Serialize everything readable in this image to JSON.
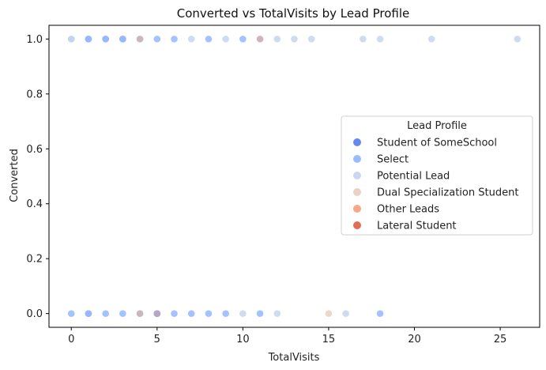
{
  "chart_data": {
    "type": "scatter",
    "title": "Converted vs TotalVisits by Lead Profile",
    "xlabel": "TotalVisits",
    "ylabel": "Converted",
    "xlim": [
      -1.3,
      27.3
    ],
    "ylim": [
      -0.05,
      1.05
    ],
    "xticks": [
      0,
      5,
      10,
      15,
      20,
      25
    ],
    "yticks": [
      0.0,
      0.2,
      0.4,
      0.6,
      0.8,
      1.0
    ],
    "grid": false,
    "legend": {
      "title": "Lead Profile",
      "placement": "center-right"
    },
    "series": [
      {
        "name": "Student of SomeSchool",
        "color": "#6788ee",
        "points": [
          [
            1,
            0
          ],
          [
            1,
            1
          ],
          [
            2,
            1
          ],
          [
            3,
            1
          ],
          [
            5,
            0
          ]
        ]
      },
      {
        "name": "Select",
        "color": "#9abbff",
        "points": [
          [
            0,
            1
          ],
          [
            1,
            1
          ],
          [
            2,
            1
          ],
          [
            3,
            1
          ],
          [
            5,
            1
          ],
          [
            6,
            1
          ],
          [
            8,
            1
          ],
          [
            10,
            1
          ],
          [
            0,
            0
          ],
          [
            1,
            0
          ],
          [
            2,
            0
          ],
          [
            3,
            0
          ],
          [
            5,
            0
          ],
          [
            6,
            0
          ],
          [
            7,
            0
          ],
          [
            8,
            0
          ],
          [
            9,
            0
          ],
          [
            11,
            0
          ],
          [
            18,
            0
          ]
        ]
      },
      {
        "name": "Potential Lead",
        "color": "#c9d7f0",
        "points": [
          [
            0,
            1
          ],
          [
            4,
            1
          ],
          [
            7,
            1
          ],
          [
            9,
            1
          ],
          [
            12,
            1
          ],
          [
            13,
            1
          ],
          [
            14,
            1
          ],
          [
            17,
            1
          ],
          [
            18,
            1
          ],
          [
            21,
            1
          ],
          [
            26,
            1
          ],
          [
            4,
            0
          ],
          [
            10,
            0
          ],
          [
            12,
            0
          ],
          [
            16,
            0
          ]
        ]
      },
      {
        "name": "Dual Specialization Student",
        "color": "#edd1c2",
        "points": [
          [
            15,
            0
          ]
        ]
      },
      {
        "name": "Other Leads",
        "color": "#f7a889",
        "points": []
      },
      {
        "name": "Lateral Student",
        "color": "#e36c55",
        "points": []
      }
    ],
    "overlap_points": [
      {
        "x": 4,
        "y": 1,
        "color": "#c9b6be"
      },
      {
        "x": 11,
        "y": 1,
        "color": "#d2b3b8"
      },
      {
        "x": 4,
        "y": 0,
        "color": "#c9b6be"
      },
      {
        "x": 5,
        "y": 0,
        "color": "#b7a7c7"
      }
    ]
  }
}
